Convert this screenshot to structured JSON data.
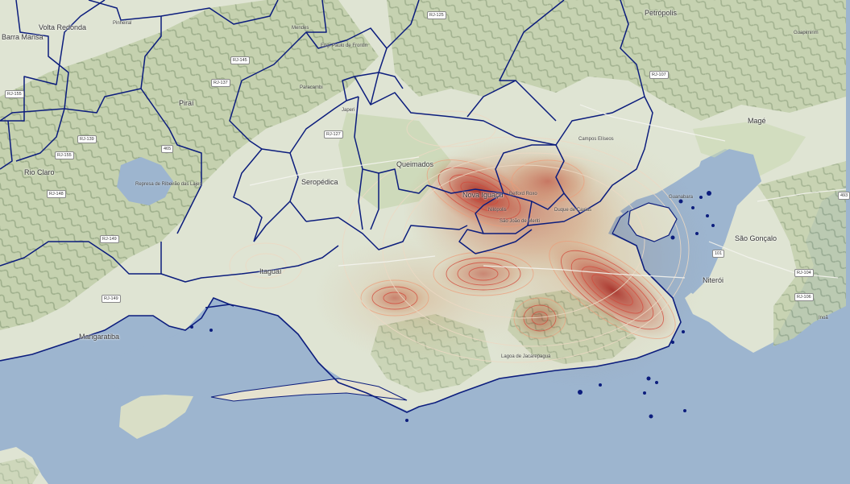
{
  "colors": {
    "sea": "#9db5cf",
    "land": "#dfe4d3",
    "forest": "#b7c89a",
    "boundary": "#0c1d7d",
    "heat_strong": "#c9352b",
    "heat_mid": "#e36b4f",
    "heat_light": "#f3a97e",
    "contour_light": "#ecd9c4"
  },
  "places": {
    "barra_mansa": "Barra Mansa",
    "volta_redonda": "Volta Redonda",
    "pinheiral": "Pinheiral",
    "pirai": "Piraí",
    "mendes": "Mendes",
    "eng_paulo_frontin": "Eng. Paulo de Frontin",
    "paracambi": "Paracambi",
    "japeri": "Japeri",
    "petropolis": "Petrópolis",
    "guapimirim": "Guapimirim",
    "mage": "Magé",
    "campos_eliseos": "Campos Elíseos",
    "queimados": "Queimados",
    "nova_iguacu": "Nova Iguaçu",
    "belford_roxo": "Belford Roxo",
    "duque_de_caxias": "Duque de Caxias",
    "sao_joao_de_meriti": "São João de Meriti",
    "nilopolis": "Nilópolis",
    "seropedica": "Seropédica",
    "itaguai": "Itaguaí",
    "rio_claro": "Rio Claro",
    "mangaratiba": "Mangaratiba",
    "guanabara": "Guanabara",
    "sao_goncalo": "São Gonçalo",
    "niteroi": "Niterói",
    "inoa": "Inoã",
    "lagoa_jacarepagua": "Lagoa de Jacarepaguá",
    "represa": "Represa de Ribeirão das Lajes"
  },
  "road_shields": {
    "rj155_w": "RJ-155",
    "rj139": "RJ-139",
    "rj145": "RJ-145",
    "rj137": "RJ-137",
    "rj127": "RJ-127",
    "rj125": "RJ-125",
    "rj107": "RJ-107",
    "rj149": "RJ-149",
    "rj149b": "RJ-149",
    "rj148": "RJ-148",
    "br101": "101",
    "br493": "493",
    "br465": "465",
    "rj106": "RJ-106",
    "rj104": "RJ-104",
    "rj155": "RJ-155"
  }
}
